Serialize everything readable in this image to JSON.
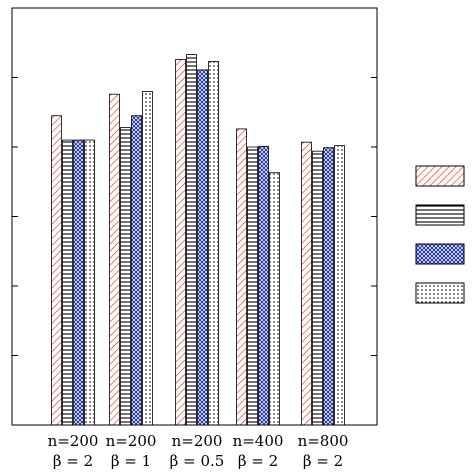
{
  "chart_data": {
    "type": "bar",
    "title": "",
    "xlabel": "",
    "ylabel": "",
    "ylim": [
      0,
      6
    ],
    "yticks": [
      1,
      2,
      3,
      4,
      5
    ],
    "grid": false,
    "legend_placement": "right",
    "categories": [
      {
        "line1": "n=200",
        "line2": "β = 2"
      },
      {
        "line1": "n=200",
        "line2": "β = 1"
      },
      {
        "line1": "n=200",
        "line2": "β = 0.5"
      },
      {
        "line1": "n=400",
        "line2": "β = 2"
      },
      {
        "line1": "n=800",
        "line2": "β = 2"
      }
    ],
    "series": [
      {
        "pattern": "diagonal-red",
        "values": [
          4.45,
          4.76,
          5.26,
          4.26,
          4.07
        ]
      },
      {
        "pattern": "horizontal-lines",
        "values": [
          4.1,
          4.28,
          5.33,
          4.0,
          3.94
        ]
      },
      {
        "pattern": "crosshatch-blue",
        "values": [
          4.1,
          4.45,
          5.11,
          4.01,
          3.99
        ]
      },
      {
        "pattern": "dotted",
        "values": [
          4.1,
          4.8,
          5.23,
          3.63,
          4.02
        ]
      }
    ]
  }
}
